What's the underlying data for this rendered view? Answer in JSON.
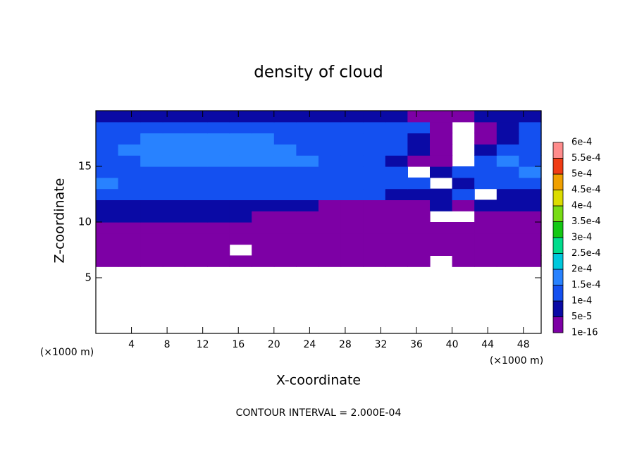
{
  "chart_data": {
    "type": "contour",
    "title": "density of cloud",
    "x_label": "X-coordinate",
    "y_label": "Z-coordinate",
    "x_unit": "(×1000 m)",
    "y_unit": "(×1000 m)",
    "footer": "CONTOUR INTERVAL = 2.000E-04",
    "xlim": [
      0,
      50
    ],
    "ylim": [
      0,
      20
    ],
    "xticks": [
      4,
      8,
      12,
      16,
      20,
      24,
      28,
      32,
      36,
      40,
      44,
      48
    ],
    "yticks": [
      5,
      10,
      15
    ],
    "field": {
      "x": [
        1.25,
        3.75,
        6.25,
        8.75,
        11.25,
        13.75,
        16.25,
        18.75,
        21.25,
        23.75,
        26.25,
        28.75,
        31.25,
        33.75,
        36.25,
        38.75,
        41.25,
        43.75,
        46.25,
        48.75
      ],
      "z": [
        6.5,
        7.5,
        8.5,
        9.5,
        10.5,
        11.5,
        12.5,
        13.5,
        14.5,
        15.5,
        16.5,
        17.5,
        18.5,
        19.5
      ],
      "values": [
        [
          2e-05,
          2e-05,
          2e-05,
          2e-05,
          2e-05,
          2e-05,
          2e-05,
          2e-05,
          2e-05,
          2e-05,
          2e-05,
          2e-05,
          2e-05,
          2e-05,
          2e-05,
          null,
          2e-05,
          2e-05,
          2e-05,
          2e-05
        ],
        [
          2e-05,
          2e-05,
          2e-05,
          2e-05,
          2e-05,
          2e-05,
          null,
          2e-05,
          2e-05,
          2e-05,
          2e-05,
          2e-05,
          2e-05,
          2e-05,
          2e-05,
          2e-05,
          2e-05,
          2e-05,
          2e-05,
          2e-05
        ],
        [
          3e-05,
          2e-05,
          2e-05,
          2e-05,
          2e-05,
          2e-05,
          2e-05,
          2e-05,
          2e-05,
          2e-05,
          2e-05,
          2e-05,
          2e-05,
          2e-05,
          2e-05,
          2e-05,
          2e-05,
          2e-05,
          2e-05,
          2e-05
        ],
        [
          3e-05,
          3e-05,
          3e-05,
          3e-05,
          3e-05,
          3e-05,
          3e-05,
          3e-05,
          3e-05,
          3e-05,
          3e-05,
          3e-05,
          3e-05,
          3e-05,
          3e-05,
          3e-05,
          3e-05,
          3e-05,
          3e-05,
          3e-05
        ],
        [
          6e-05,
          6e-05,
          6e-05,
          6e-05,
          6e-05,
          6e-05,
          6e-05,
          3e-05,
          3e-05,
          3e-05,
          3e-05,
          3e-05,
          3e-05,
          3e-05,
          3e-05,
          null,
          null,
          3e-05,
          3e-05,
          3e-05
        ],
        [
          8e-05,
          8e-05,
          8e-05,
          8e-05,
          8e-05,
          8e-05,
          8e-05,
          8e-05,
          8e-05,
          8e-05,
          3e-05,
          3e-05,
          3e-05,
          3e-05,
          3e-05,
          6e-05,
          3e-05,
          6e-05,
          6e-05,
          6e-05
        ],
        [
          0.00011,
          0.00011,
          0.00011,
          0.00011,
          0.00011,
          0.00011,
          0.00011,
          0.00011,
          0.00011,
          0.00011,
          0.00011,
          0.00011,
          0.00011,
          8e-05,
          7e-05,
          7e-05,
          0.00011,
          null,
          7e-05,
          7e-05
        ],
        [
          0.00016,
          0.00012,
          0.00012,
          0.00012,
          0.00012,
          0.00012,
          0.00012,
          0.00012,
          0.00012,
          0.00012,
          0.00012,
          0.00012,
          0.00012,
          0.00012,
          0.00011,
          null,
          9e-05,
          0.00011,
          0.00011,
          0.00011
        ],
        [
          0.00013,
          0.00013,
          0.00013,
          0.00013,
          0.00013,
          0.00013,
          0.00013,
          0.00013,
          0.00013,
          0.00013,
          0.00013,
          0.00013,
          0.00013,
          0.00013,
          null,
          9e-05,
          0.00012,
          0.00012,
          0.00012,
          0.00016
        ],
        [
          0.00013,
          0.00013,
          0.00016,
          0.00016,
          0.00016,
          0.00016,
          0.00016,
          0.00016,
          0.00016,
          0.00016,
          0.00013,
          0.00013,
          0.00013,
          8e-05,
          3e-05,
          3e-05,
          null,
          0.00011,
          0.00016,
          0.00013
        ],
        [
          0.00013,
          0.00016,
          0.00016,
          0.00016,
          0.00016,
          0.00016,
          0.00016,
          0.00016,
          0.00016,
          0.00013,
          0.00013,
          0.00013,
          0.00013,
          0.00011,
          6e-05,
          3e-05,
          null,
          7e-05,
          0.00013,
          0.00013
        ],
        [
          0.00013,
          0.00013,
          0.00016,
          0.00016,
          0.00016,
          0.00016,
          0.00016,
          0.00016,
          0.00013,
          0.00013,
          0.00013,
          0.00013,
          0.00013,
          0.00012,
          8e-05,
          3e-05,
          null,
          3e-05,
          8e-05,
          0.00011
        ],
        [
          0.00011,
          0.00011,
          0.00011,
          0.00011,
          0.00011,
          0.00011,
          0.00011,
          0.00011,
          0.00011,
          0.00011,
          0.00011,
          0.00011,
          0.00011,
          0.00011,
          0.00011,
          3e-05,
          null,
          3e-05,
          6e-05,
          0.0001
        ],
        [
          7e-05,
          7e-05,
          7e-05,
          7e-05,
          7e-05,
          7e-05,
          7e-05,
          7e-05,
          7e-05,
          7e-05,
          7e-05,
          7e-05,
          7e-05,
          7e-05,
          3e-05,
          3e-05,
          3e-05,
          7e-05,
          7e-05,
          7e-05
        ]
      ]
    },
    "colorbar": {
      "ticks": [
        1e-16,
        {
          "value": 5e-05,
          "label": "5e-5"
        },
        {
          "value": 0.0001,
          "label": "1e-4"
        },
        {
          "value": 0.00015,
          "label": "1.5e-4"
        },
        {
          "value": 0.0002,
          "label": "2e-4"
        },
        {
          "value": 0.00025,
          "label": "2.5e-4"
        },
        {
          "value": 0.0003,
          "label": "3e-4"
        },
        {
          "value": 0.00035,
          "label": "3.5e-4"
        },
        {
          "value": 0.0004,
          "label": "4e-4"
        },
        {
          "value": 0.00045,
          "label": "4.5e-4"
        },
        {
          "value": 0.0005,
          "label": "5e-4"
        },
        {
          "value": 0.00055,
          "label": "5.5e-4"
        },
        {
          "value": 0.0006,
          "label": "6e-4"
        }
      ],
      "colors": [
        "#7d00a5",
        "#0a0aa5",
        "#1450f0",
        "#2882ff",
        "#00c8dc",
        "#00dc8c",
        "#14c814",
        "#78dc14",
        "#dcdc00",
        "#f0a000",
        "#f03c14",
        "#ff8c8c"
      ]
    }
  }
}
